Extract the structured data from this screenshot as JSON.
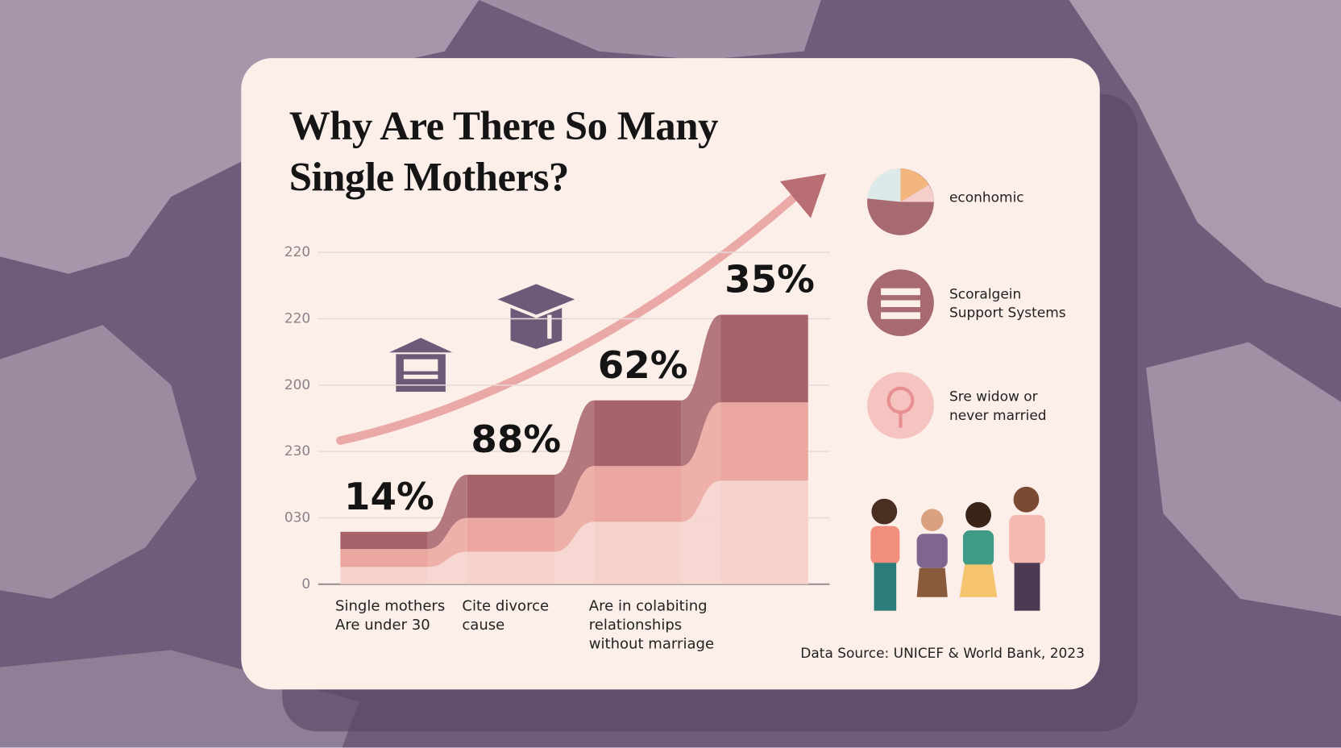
{
  "chart_data": {
    "type": "stacked-step",
    "title": "Why Are There So Many\nSingle Mothers?",
    "categories": [
      "Single mothers\nAre under 30",
      "Cite divorce\ncause",
      "Are in colabiting\nrelationships\nwithout marriage",
      null
    ],
    "series": [
      {
        "color": "#f6d2cc",
        "values": [
          0.26,
          0.49,
          0.94,
          1.56
        ]
      },
      {
        "color": "#eaa69f",
        "values": [
          0.27,
          0.51,
          0.84,
          1.18
        ]
      },
      {
        "color": "#a6636a",
        "values": [
          0.26,
          0.65,
          0.99,
          1.32
        ]
      }
    ],
    "annotations": [
      "14%",
      "88%",
      "62%",
      "35%"
    ],
    "ylim": [
      0,
      5
    ],
    "yticks": [
      0,
      {
        "value": 1,
        "label": "030"
      },
      {
        "value": 2,
        "label": "230"
      },
      {
        "value": 3,
        "label": "200"
      },
      {
        "value": 4,
        "label": "220"
      },
      {
        "value": 5,
        "label": "220"
      }
    ],
    "grid": true,
    "side_items": [
      "econhomic",
      "Scoralgein\nSupport Systems",
      "Sre widow or\nnever married"
    ],
    "source": "Data Source: UNICEF & World Bank, 2023"
  }
}
